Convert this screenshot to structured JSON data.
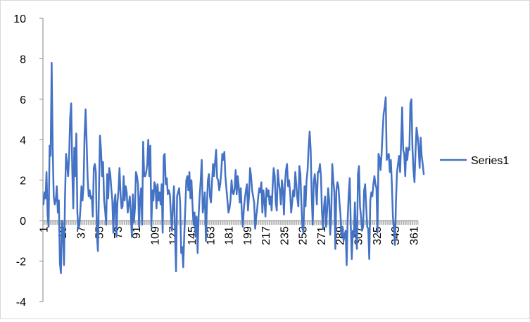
{
  "chart_data": {
    "type": "line",
    "title": "",
    "xlabel": "",
    "ylabel": "",
    "ylim": [
      -4,
      10
    ],
    "yticks": [
      -4,
      -2,
      0,
      2,
      4,
      6,
      8,
      10
    ],
    "xtick_labels": [
      "1",
      "19",
      "37",
      "55",
      "73",
      "91",
      "109",
      "127",
      "145",
      "163",
      "181",
      "199",
      "217",
      "235",
      "253",
      "271",
      "289",
      "307",
      "325",
      "343",
      "361"
    ],
    "x_start": 1,
    "x_end": 365,
    "grid": false,
    "legend_position": "right",
    "series": [
      {
        "name": "Series1",
        "color": "#4472C4",
        "values": [
          0.8,
          1.4,
          1.1,
          2.4,
          0.3,
          -0.3,
          3.7,
          3.2,
          7.8,
          3.6,
          1.2,
          0.8,
          1.0,
          1.7,
          0.4,
          1.0,
          -2.1,
          -2.6,
          0.0,
          -0.5,
          -2.2,
          1.2,
          3.3,
          2.8,
          2.2,
          3.2,
          5.1,
          5.8,
          2.6,
          0.6,
          3.6,
          2.2,
          4.3,
          0.4,
          -0.4,
          -0.2,
          0.6,
          1.7,
          1.0,
          1.7,
          4.2,
          5.5,
          3.9,
          2.1,
          1.2,
          1.5,
          1.1,
          1.2,
          0.2,
          2.6,
          2.8,
          2.4,
          -0.7,
          -1.5,
          1.4,
          4.2,
          3.5,
          2.2,
          2.9,
          1.0,
          0.5,
          -0.2,
          2.3,
          1.1,
          2.6,
          2.3,
          1.6,
          1.0,
          -0.6,
          0.9,
          1.3,
          -0.8,
          0.9,
          1.5,
          2.6,
          1.3,
          0.6,
          0.7,
          2.2,
          1.0,
          1.7,
          1.4,
          0.4,
          0.8,
          1.2,
          0.4,
          -0.8,
          1.3,
          -0.1,
          0.6,
          2.4,
          2.2,
          1.8,
          -0.3,
          1.1,
          1.6,
          -0.2,
          3.9,
          2.2,
          2.2,
          2.4,
          2.8,
          4.0,
          2.2,
          3.7,
          -0.3,
          1.5,
          1.0,
          1.9,
          1.7,
          0.6,
          1.8,
          1.0,
          1.4,
          0.8,
          1.8,
          -0.6,
          3.2,
          3.3,
          1.8,
          2.1,
          1.3,
          1.5,
          1.3,
          0.3,
          -0.5,
          0.8,
          1.7,
          -0.6,
          -2.5,
          1.2,
          1.4,
          1.6,
          0.9,
          -1.6,
          -1.3,
          -2.3,
          -0.7,
          0.6,
          2.0,
          2.2,
          1.5,
          2.4,
          1.1,
          2.0,
          0.8,
          -0.2,
          0.4,
          -0.8,
          0.2,
          -1.6,
          0.3,
          1.2,
          2.0,
          3.0,
          0.4,
          0.8,
          1.4,
          -1.0,
          0.7,
          2.0,
          2.3,
          1.2,
          0.9,
          1.9,
          2.8,
          2.2,
          2.9,
          3.5,
          2.1,
          2.0,
          1.5,
          1.8,
          2.4,
          3.3,
          3.0,
          3.4,
          2.2,
          1.6,
          1.0,
          0.4,
          0.6,
          1.0,
          2.0,
          1.4,
          1.3,
          1.6,
          2.5,
          1.3,
          2.2,
          1.7,
          0.9,
          1.6,
          0.4,
          -0.3,
          0.6,
          1.1,
          1.5,
          1.8,
          0.5,
          1.2,
          2.6,
          2.2,
          1.5,
          1.2,
          0.9,
          -0.4,
          0.2,
          0.6,
          1.2,
          1.6,
          1.4,
          1.9,
          0.4,
          1.5,
          1.0,
          0.2,
          1.6,
          1.2,
          1.5,
          0.8,
          1.2,
          0.5,
          1.7,
          2.6,
          2.2,
          0.9,
          0.5,
          2.5,
          1.9,
          1.5,
          0.8,
          2.0,
          1.5,
          0.3,
          1.8,
          2.5,
          2.8,
          1.7,
          2.0,
          1.4,
          0.4,
          0.9,
          1.5,
          1.2,
          2.4,
          1.8,
          1.1,
          0.7,
          2.7,
          2.3,
          0.8,
          -0.4,
          -0.6,
          1.7,
          0.7,
          2.0,
          2.5,
          3.6,
          4.4,
          3.5,
          1.2,
          -0.2,
          1.9,
          2.3,
          1.7,
          0.8,
          2.4,
          2.4,
          2.8,
          2.2,
          0.4,
          -0.4,
          0.7,
          1.2,
          -0.3,
          0.5,
          1.6,
          1.0,
          -0.7,
          0.3,
          2.8,
          2.0,
          1.4,
          -1.4,
          1.5,
          1.9,
          1.7,
          0.9,
          0.3,
          -0.8,
          -0.3,
          -1.0,
          -0.7,
          -0.5,
          -2.2,
          0.1,
          1.3,
          2.1,
          -0.2,
          -1.9,
          -0.5,
          -0.8,
          0.9,
          -0.6,
          -1.4,
          2.3,
          2.7,
          0.7,
          0.2,
          -0.5,
          -0.3,
          1.5,
          1.8,
          0.7,
          -0.3,
          -0.4,
          -1.9,
          1.0,
          1.4,
          1.2,
          1.8,
          2.2,
          1.8,
          1.6,
          -0.6,
          3.3,
          3.1,
          2.5,
          3.3,
          4.4,
          5.3,
          5.6,
          6.1,
          3.0,
          3.2,
          3.3,
          2.4,
          3.0,
          1.8,
          0.2,
          -0.4,
          -1.2,
          1.0,
          2.4,
          2.8,
          3.2,
          2.4,
          3.9,
          5.6,
          3.5,
          3.3,
          2.2,
          3.6,
          3.0,
          3.6,
          3.5,
          5.8,
          6.0,
          3.6,
          2.5,
          1.9,
          3.4,
          4.6,
          4.2,
          3.6,
          2.6,
          4.1,
          3.2,
          2.8,
          2.3
        ]
      }
    ]
  }
}
